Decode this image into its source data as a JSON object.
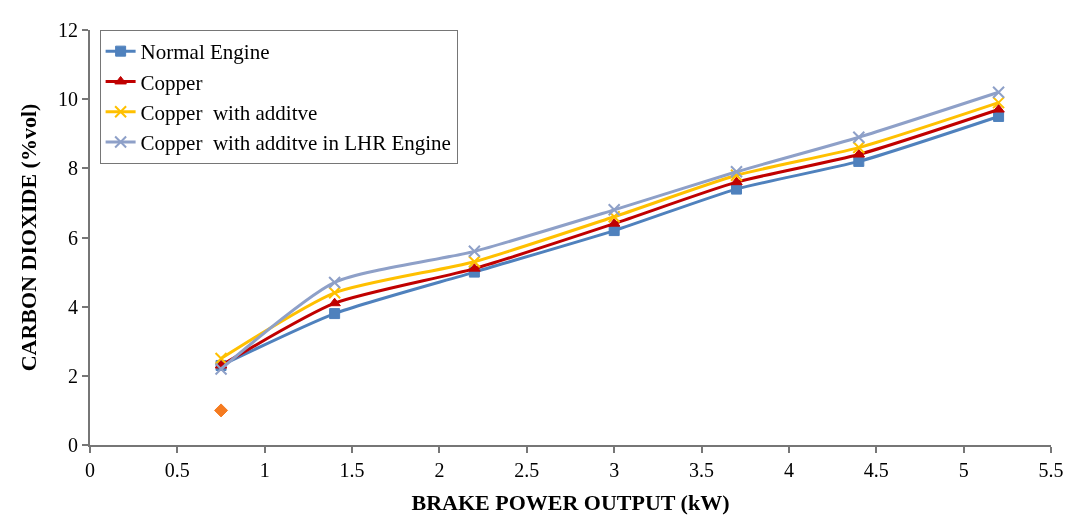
{
  "chart_data": {
    "type": "line",
    "xlabel": "BRAKE POWER OUTPUT (kW)",
    "ylabel": "CARBON DIOXIDE (%vol)",
    "x": [
      0.75,
      1.4,
      2.2,
      3,
      3.7,
      4.4,
      5.2
    ],
    "xlim": [
      0,
      5.5
    ],
    "xticks": [
      0,
      0.5,
      1,
      1.5,
      2,
      2.5,
      3,
      3.5,
      4,
      4.5,
      5,
      5.5
    ],
    "ylim": [
      0,
      12
    ],
    "yticks": [
      0,
      2,
      4,
      6,
      8,
      10,
      12
    ],
    "legend": "top left",
    "series": [
      {
        "name": "Normal Engine",
        "color": "#4f81bd",
        "marker": "square",
        "values": [
          2.3,
          3.8,
          5.0,
          6.2,
          7.4,
          8.2,
          9.5
        ]
      },
      {
        "name": "Copper",
        "color": "#c00000",
        "marker": "triangle",
        "values": [
          2.3,
          4.1,
          5.1,
          6.4,
          7.6,
          8.4,
          9.7
        ]
      },
      {
        "name": "Copper  with additve",
        "color": "#ffc000",
        "marker": "cross",
        "values": [
          2.5,
          4.4,
          5.3,
          6.6,
          7.8,
          8.6,
          9.9
        ]
      },
      {
        "name": "Copper  with additve in LHR Engine",
        "color": "#8ea0c8",
        "marker": "cross",
        "values": [
          2.2,
          4.7,
          5.6,
          6.8,
          7.9,
          8.9,
          10.2
        ]
      },
      {
        "type": "scatter",
        "color": "#f57b20",
        "marker": "diamond",
        "x": [
          0.75
        ],
        "values": [
          1
        ]
      }
    ]
  }
}
